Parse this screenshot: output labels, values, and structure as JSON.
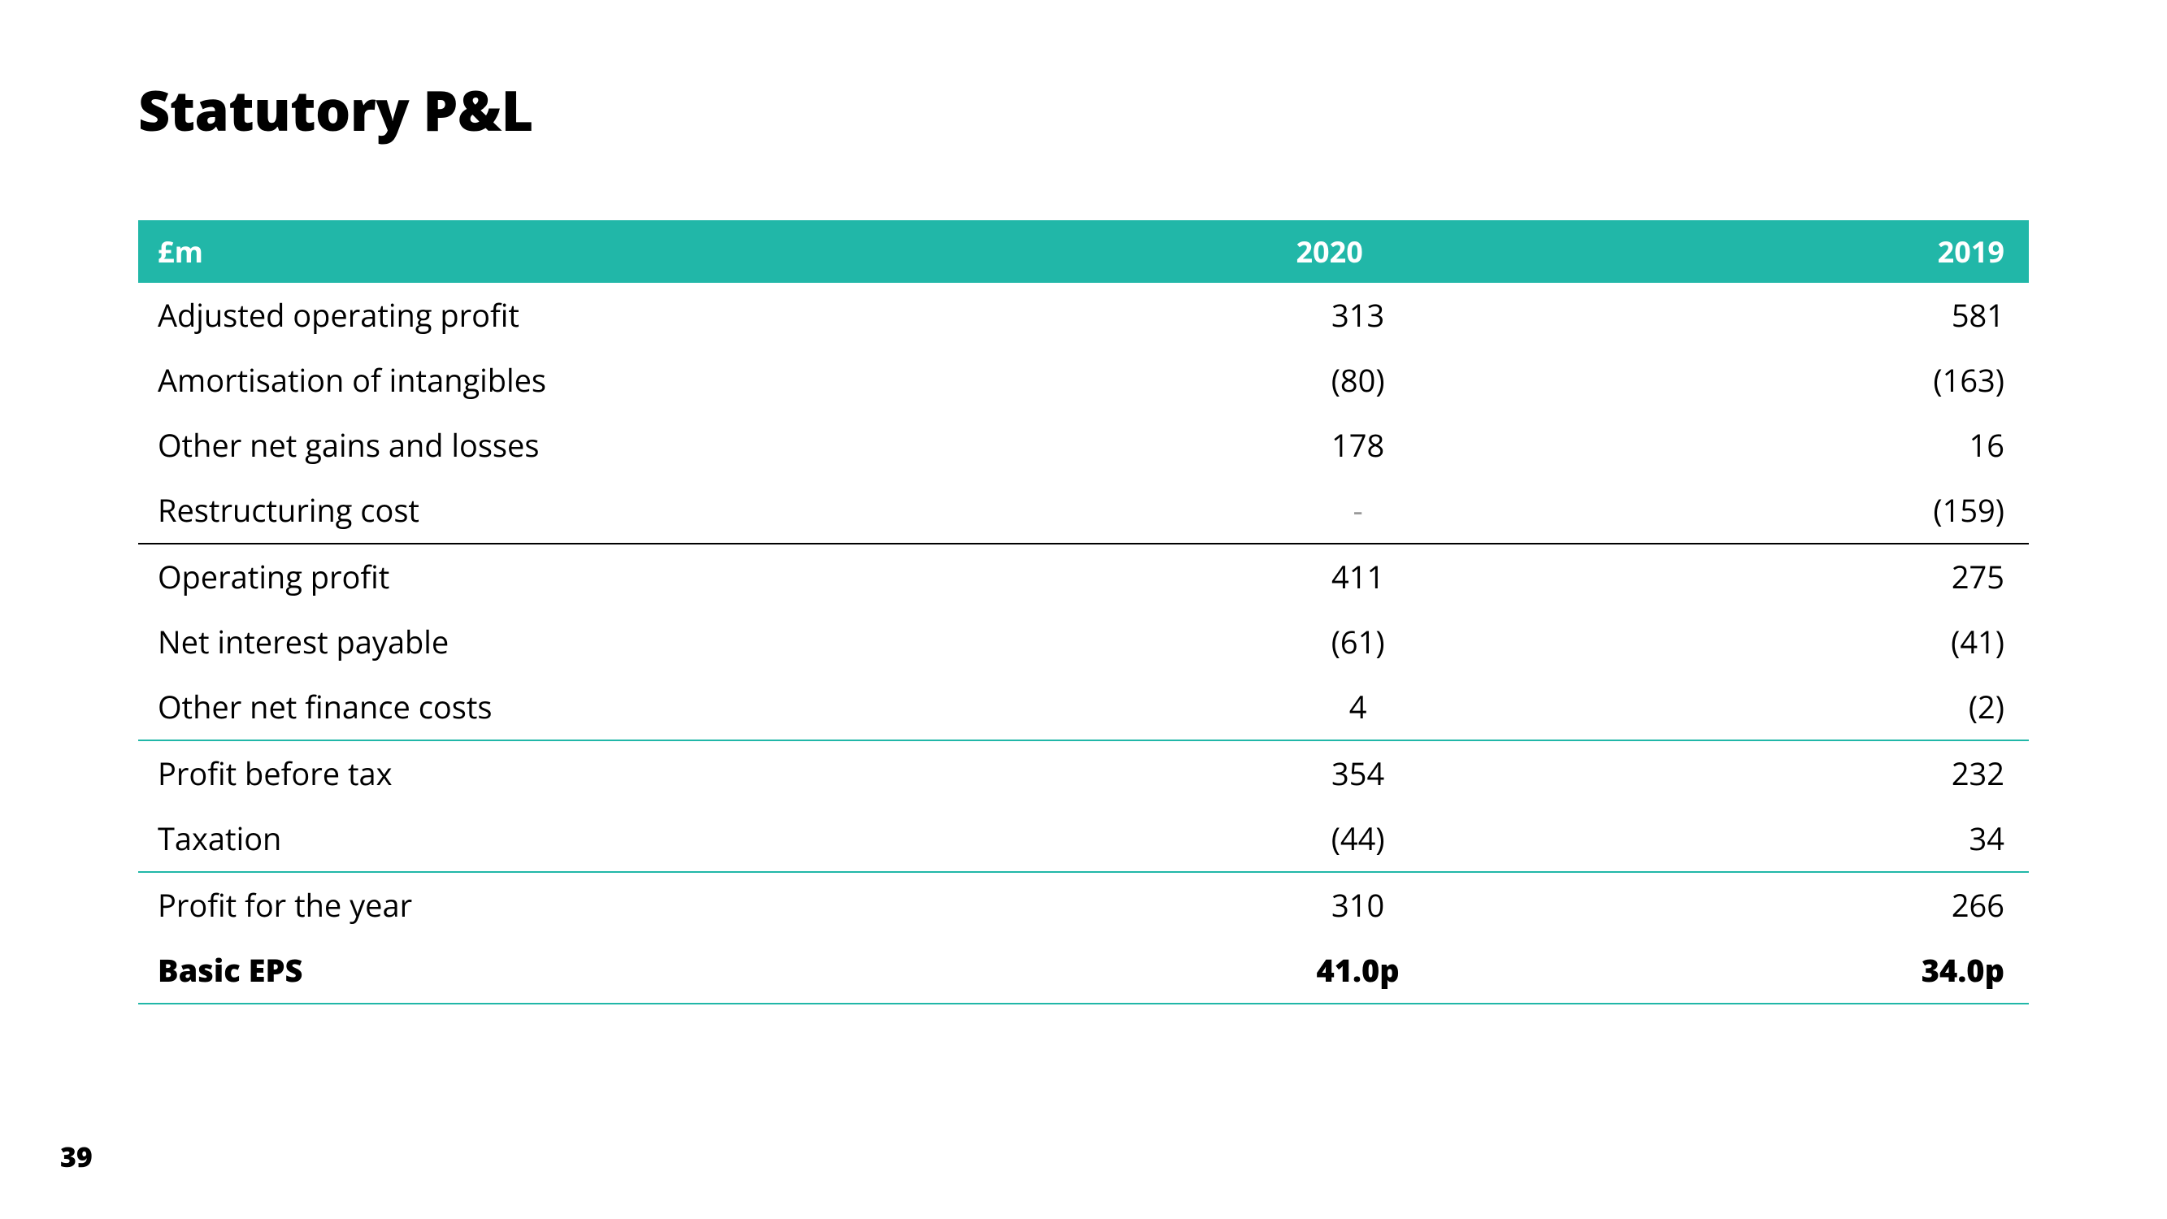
{
  "page": {
    "title": "Statutory P&L",
    "page_number": "39"
  },
  "table": {
    "type": "table",
    "header_bg": "#21b7a8",
    "header_text_color": "#ffffff",
    "border_black": "#000000",
    "border_teal": "#21b7a8",
    "background_color": "#ffffff",
    "title_fontsize": 68,
    "body_fontsize": 38,
    "header_fontsize": 36,
    "columns": [
      {
        "label": "£m",
        "align": "left"
      },
      {
        "label": "2020",
        "align": "center"
      },
      {
        "label": "2019",
        "align": "right"
      }
    ],
    "rows": [
      {
        "label": "Adjusted operating profit",
        "v2020": "313",
        "v2019": "581",
        "border": "none",
        "bold": false
      },
      {
        "label": "Amortisation of intangibles",
        "v2020": "(80)",
        "v2019": "(163)",
        "border": "none",
        "bold": false
      },
      {
        "label": "Other net gains and losses",
        "v2020": "178",
        "v2019": "16",
        "border": "none",
        "bold": false
      },
      {
        "label": "Restructuring cost",
        "v2020": "-",
        "v2019": "(159)",
        "border": "black",
        "bold": false,
        "dash2020": true
      },
      {
        "label": "Operating profit",
        "v2020": "411",
        "v2019": "275",
        "border": "none",
        "bold": false
      },
      {
        "label": "Net interest payable",
        "v2020": "(61)",
        "v2019": "(41)",
        "border": "none",
        "bold": false
      },
      {
        "label": "Other net finance costs",
        "v2020": "4",
        "v2019": "(2)",
        "border": "teal",
        "bold": false
      },
      {
        "label": "Profit before tax",
        "v2020": "354",
        "v2019": "232",
        "border": "none",
        "bold": false
      },
      {
        "label": "Taxation",
        "v2020": "(44)",
        "v2019": "34",
        "border": "teal",
        "bold": false
      },
      {
        "label": "Profit for the year",
        "v2020": "310",
        "v2019": "266",
        "border": "none",
        "bold": false
      },
      {
        "label": "Basic EPS",
        "v2020": "41.0p",
        "v2019": "34.0p",
        "border": "teal",
        "bold": true
      }
    ]
  }
}
